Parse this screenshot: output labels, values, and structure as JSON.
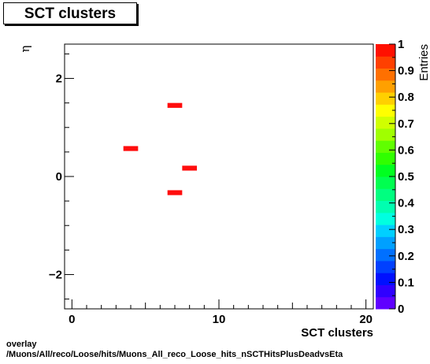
{
  "title": "SCT clusters",
  "chart_data": {
    "type": "heatmap",
    "title": "SCT clusters",
    "xlabel": "SCT clusters",
    "ylabel": "η",
    "zlabel": "Entries",
    "xlim": [
      -0.5,
      20.5
    ],
    "ylim": [
      -2.7,
      2.7
    ],
    "zlim": [
      0,
      1
    ],
    "x_ticks": [
      0,
      10,
      20
    ],
    "y_ticks": [
      -2,
      0,
      2
    ],
    "z_ticks": [
      "0",
      "0.1",
      "0.2",
      "0.3",
      "0.4",
      "0.5",
      "0.6",
      "0.7",
      "0.8",
      "0.9",
      "1"
    ],
    "x_bin_width": 1,
    "y_bin_width": 0.1,
    "bins": [
      {
        "x": 7,
        "y": 1.45,
        "value": 1
      },
      {
        "x": 4,
        "y": 0.57,
        "value": 1
      },
      {
        "x": 8,
        "y": 0.17,
        "value": 1
      },
      {
        "x": 7,
        "y": -0.33,
        "value": 1
      }
    ],
    "bin_color": "#ff0d0d",
    "palette": [
      "#6000ff",
      "#3000ff",
      "#0010ff",
      "#0040ff",
      "#0070ff",
      "#00a0ff",
      "#00d0ff",
      "#00ffe0",
      "#00ffb0",
      "#00ff80",
      "#00ff50",
      "#00ff20",
      "#30ff00",
      "#60ff00",
      "#a0ff00",
      "#d0ff00",
      "#ffff00",
      "#ffd000",
      "#ffa000",
      "#ff7000",
      "#ff4000",
      "#ff1000"
    ]
  },
  "footer": {
    "line1": "overlay",
    "line2": "/Muons/All/reco/Loose/hits/Muons_All_reco_Loose_hits_nSCTHitsPlusDeadvsEta"
  }
}
